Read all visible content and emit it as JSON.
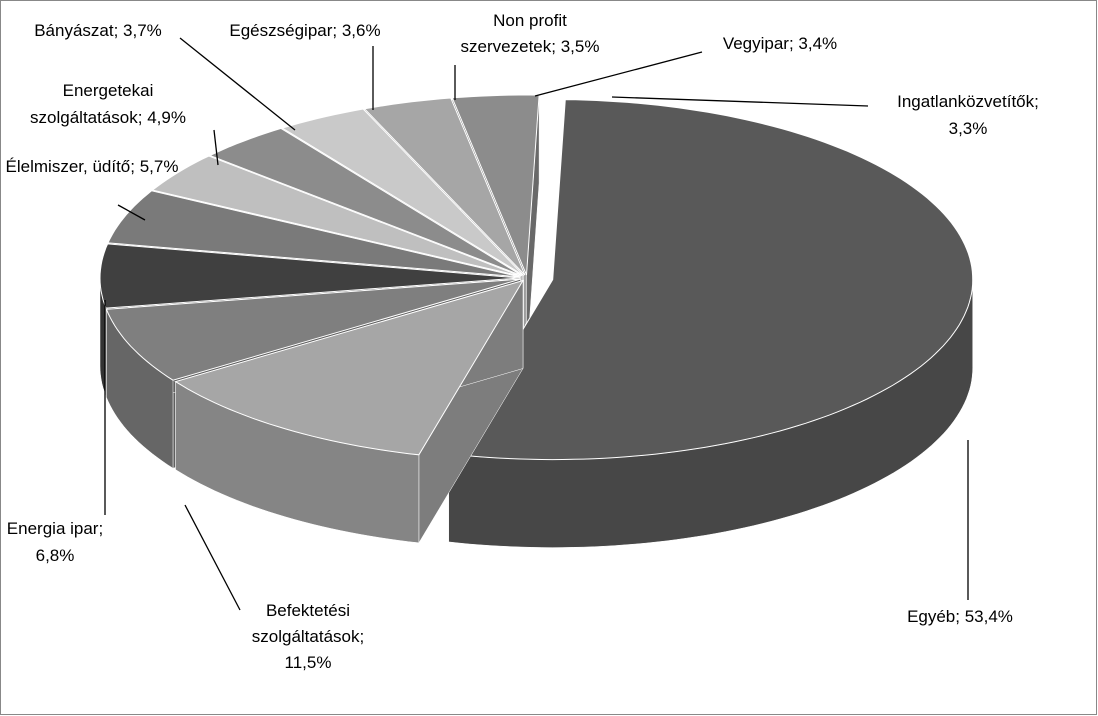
{
  "chart_data": {
    "type": "pie",
    "values": [
      53.4,
      11.5,
      6.8,
      5.7,
      4.9,
      3.7,
      3.6,
      3.5,
      3.4,
      3.3
    ],
    "value_labels": [
      "Egyéb; 53,4%",
      "Befektetési szolgáltatások; 11,5%",
      "Energia ipar; 6,8%",
      "Élelmiszer, üdítő; 5,7%",
      "Energetekai szolgáltatások; 4,9%",
      "Bányászat; 3,7%",
      "Egészségipar; 3,6%",
      "Non profit szervezetek; 3,5%",
      "Vegyipar; 3,4%",
      "Ingatlanközvetítők; 3,3%"
    ],
    "colors": [
      "#595959",
      "#a6a6a6",
      "#7f7f7f",
      "#404040",
      "#7a7a7a",
      "#bfbfbf",
      "#8c8c8c",
      "#c9c9c9",
      "#a6a6a6",
      "#8c8c8c"
    ]
  }
}
